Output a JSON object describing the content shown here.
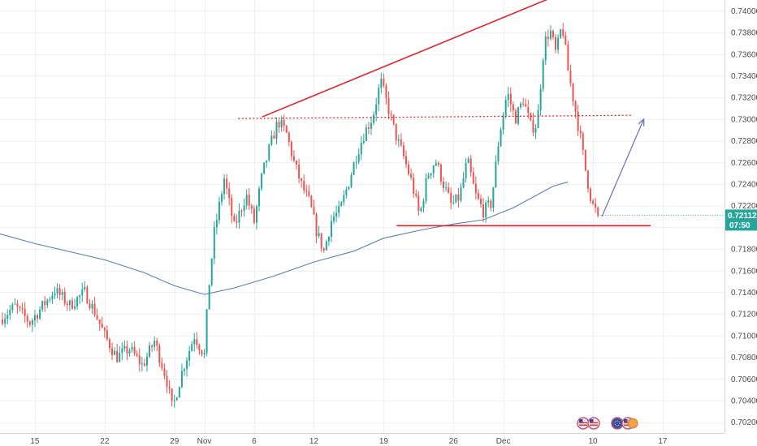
{
  "chart_data": {
    "type": "candlestick",
    "title": "",
    "xlabel": "",
    "ylabel": "",
    "ylim": [
      0.701,
      0.741
    ],
    "y_ticks": [
      "0.74000",
      "0.73800",
      "0.73600",
      "0.73400",
      "0.73200",
      "0.73000",
      "0.72800",
      "0.72600",
      "0.72400",
      "0.72200",
      "0.72000",
      "0.71800",
      "0.71600",
      "0.71400",
      "0.71200",
      "0.71000",
      "0.70800",
      "0.70600",
      "0.70400",
      "0.70200"
    ],
    "x_ticks": [
      {
        "label": "15",
        "day": 15
      },
      {
        "label": "22",
        "day": 22
      },
      {
        "label": "29",
        "day": 29
      },
      {
        "label": "Nov",
        "day": 32
      },
      {
        "label": "6",
        "day": 37
      },
      {
        "label": "12",
        "day": 43
      },
      {
        "label": "19",
        "day": 50
      },
      {
        "label": "26",
        "day": 57
      },
      {
        "label": "Dec",
        "day": 62
      },
      {
        "label": "10",
        "day": 71
      },
      {
        "label": "17",
        "day": 78
      }
    ],
    "x_range_days": [
      11.5,
      84.2
    ],
    "grid": true,
    "current_price": "0.72112",
    "countdown": "07:50",
    "colors": {
      "up": "#26a69a",
      "down": "#ef5350",
      "ma": "#5b7fb6",
      "trendline": "#e0262c",
      "projection": "#6f77c9",
      "price_tag": "#26a69a",
      "grid": "#eef0f3",
      "axis_text": "#4a4a4a"
    },
    "moving_average": [
      [
        11.5,
        0.7194
      ],
      [
        15,
        0.7185
      ],
      [
        22,
        0.717
      ],
      [
        26,
        0.7158
      ],
      [
        29,
        0.7146
      ],
      [
        32,
        0.7138
      ],
      [
        35,
        0.7144
      ],
      [
        39,
        0.7155
      ],
      [
        43,
        0.7168
      ],
      [
        47,
        0.7178
      ],
      [
        50,
        0.719
      ],
      [
        54,
        0.7198
      ],
      [
        57,
        0.7203
      ],
      [
        60,
        0.7207
      ],
      [
        63,
        0.7218
      ],
      [
        65,
        0.7228
      ],
      [
        67,
        0.7238
      ],
      [
        68.5,
        0.7242
      ]
    ],
    "key_points": [
      [
        11.5,
        0.7115
      ],
      [
        13,
        0.7127
      ],
      [
        14.5,
        0.7112
      ],
      [
        16,
        0.713
      ],
      [
        17,
        0.7142
      ],
      [
        18.5,
        0.7128
      ],
      [
        20,
        0.714
      ],
      [
        21,
        0.7122
      ],
      [
        22,
        0.71
      ],
      [
        23.2,
        0.708
      ],
      [
        24.5,
        0.7088
      ],
      [
        25.8,
        0.7072
      ],
      [
        27,
        0.7095
      ],
      [
        28.2,
        0.706
      ],
      [
        28.8,
        0.7032
      ],
      [
        29.8,
        0.7068
      ],
      [
        31,
        0.71
      ],
      [
        32,
        0.7082
      ],
      [
        32.4,
        0.714
      ],
      [
        33,
        0.7195
      ],
      [
        34,
        0.7245
      ],
      [
        35,
        0.72
      ],
      [
        36.2,
        0.723
      ],
      [
        37,
        0.7205
      ],
      [
        37.8,
        0.7248
      ],
      [
        38.6,
        0.7275
      ],
      [
        39.4,
        0.7298
      ],
      [
        40.2,
        0.7288
      ],
      [
        41,
        0.726
      ],
      [
        41.8,
        0.7238
      ],
      [
        42.6,
        0.7222
      ],
      [
        43.3,
        0.7195
      ],
      [
        44,
        0.7178
      ],
      [
        44.8,
        0.7208
      ],
      [
        45.6,
        0.7215
      ],
      [
        46.5,
        0.7242
      ],
      [
        47.3,
        0.7268
      ],
      [
        48.1,
        0.7288
      ],
      [
        48.9,
        0.7302
      ],
      [
        49.7,
        0.7335
      ],
      [
        50.4,
        0.7312
      ],
      [
        51.2,
        0.7285
      ],
      [
        52,
        0.7265
      ],
      [
        52.8,
        0.7242
      ],
      [
        53.6,
        0.721
      ],
      [
        54.4,
        0.7248
      ],
      [
        55.2,
        0.7262
      ],
      [
        56,
        0.724
      ],
      [
        56.8,
        0.722
      ],
      [
        57.6,
        0.7228
      ],
      [
        58.4,
        0.7262
      ],
      [
        59.2,
        0.723
      ],
      [
        60,
        0.7215
      ],
      [
        60.8,
        0.7222
      ],
      [
        61.6,
        0.7285
      ],
      [
        62.4,
        0.7325
      ],
      [
        63.2,
        0.73
      ],
      [
        64,
        0.7318
      ],
      [
        64.8,
        0.7292
      ],
      [
        65.4,
        0.7295
      ],
      [
        66.1,
        0.737
      ],
      [
        66.7,
        0.7382
      ],
      [
        67.3,
        0.736
      ],
      [
        67.9,
        0.7388
      ],
      [
        68.5,
        0.7345
      ],
      [
        69.1,
        0.7315
      ],
      [
        69.7,
        0.7285
      ],
      [
        70.3,
        0.725
      ],
      [
        70.9,
        0.7222
      ],
      [
        71.5,
        0.7211
      ]
    ],
    "annotations": {
      "rising_trendline": {
        "from": [
          37.8,
          0.7302
        ],
        "to": [
          66.8,
          0.7412
        ]
      },
      "resistance_dotted": {
        "from": [
          35.4,
          0.73005
        ],
        "to": [
          74.9,
          0.73035
        ]
      },
      "support_line": {
        "from": [
          51.3,
          0.72015
        ],
        "to": [
          76.8,
          0.72015
        ]
      },
      "projection_arrow": {
        "from": [
          71.9,
          0.721
        ],
        "to": [
          76.1,
          0.73
        ]
      }
    }
  },
  "ui": {
    "event_flags": [
      "us-flag-icon",
      "us-flag-icon",
      "eu-flag-icon",
      "us-flag-icon"
    ]
  }
}
